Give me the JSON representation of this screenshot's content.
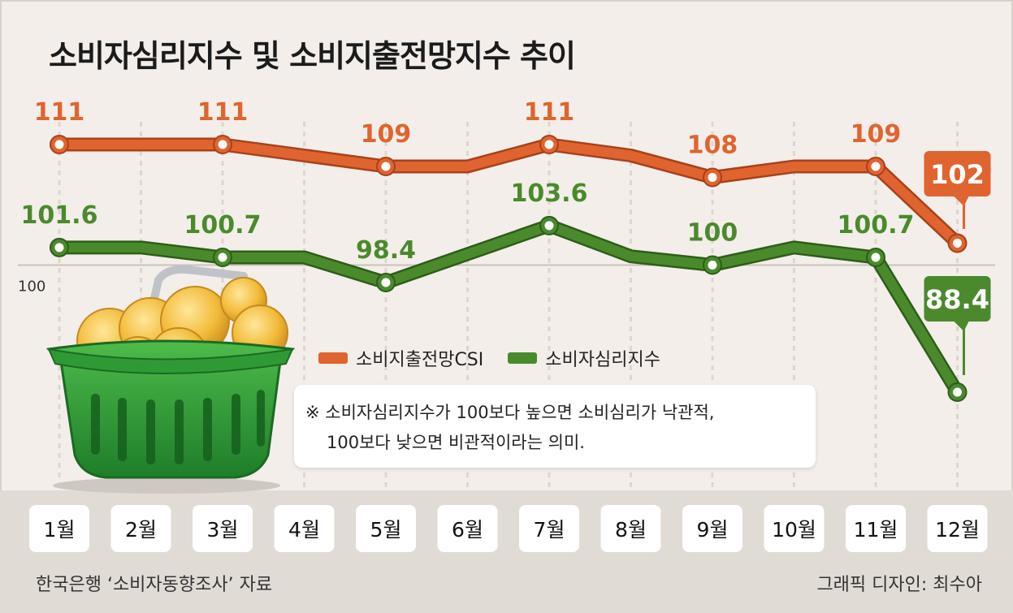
{
  "title": "소비자심리지수 및 소비지출전망지수 추이",
  "source": "한국은행 ‘소비자동향조사’ 자료",
  "credit": "그래픽 디자인: 최수아",
  "note": {
    "line1": "※ 소비자심리지수가 100보다 높으면 소비심리가 낙관적,",
    "line2": "100보다 낮으면 비관적이라는 의미."
  },
  "colors": {
    "orange": "#e0642f",
    "green": "#4a8a2c",
    "background": "#f3eeea"
  },
  "chart_data": {
    "type": "line",
    "categories": [
      "1월",
      "2월",
      "3월",
      "4월",
      "5월",
      "6월",
      "7월",
      "8월",
      "9월",
      "10월",
      "11월",
      "12월"
    ],
    "reference_line": {
      "value": 100,
      "label": "100"
    },
    "ylim": [
      80,
      115
    ],
    "legend_position": "bottom-center",
    "grid": true,
    "series": [
      {
        "name": "소비지출전망CSI",
        "color": "#e0642f",
        "values": [
          111,
          111,
          111,
          110,
          109,
          109,
          111,
          110,
          108,
          109,
          109,
          102
        ],
        "labeled_indices": [
          0,
          2,
          4,
          6,
          8,
          10,
          11
        ]
      },
      {
        "name": "소비자심리지수",
        "color": "#4a8a2c",
        "values": [
          101.6,
          101.6,
          100.7,
          100.7,
          98.4,
          101,
          103.6,
          100.8,
          100,
          101.6,
          100.7,
          88.4
        ],
        "labeled_indices": [
          0,
          2,
          4,
          6,
          8,
          10,
          11
        ]
      }
    ],
    "labels": {
      "orange": [
        "111",
        "111",
        "109",
        "111",
        "108",
        "109",
        "102"
      ],
      "green": [
        "101.6",
        "100.7",
        "98.4",
        "103.6",
        "100",
        "100.7",
        "88.4"
      ]
    }
  }
}
